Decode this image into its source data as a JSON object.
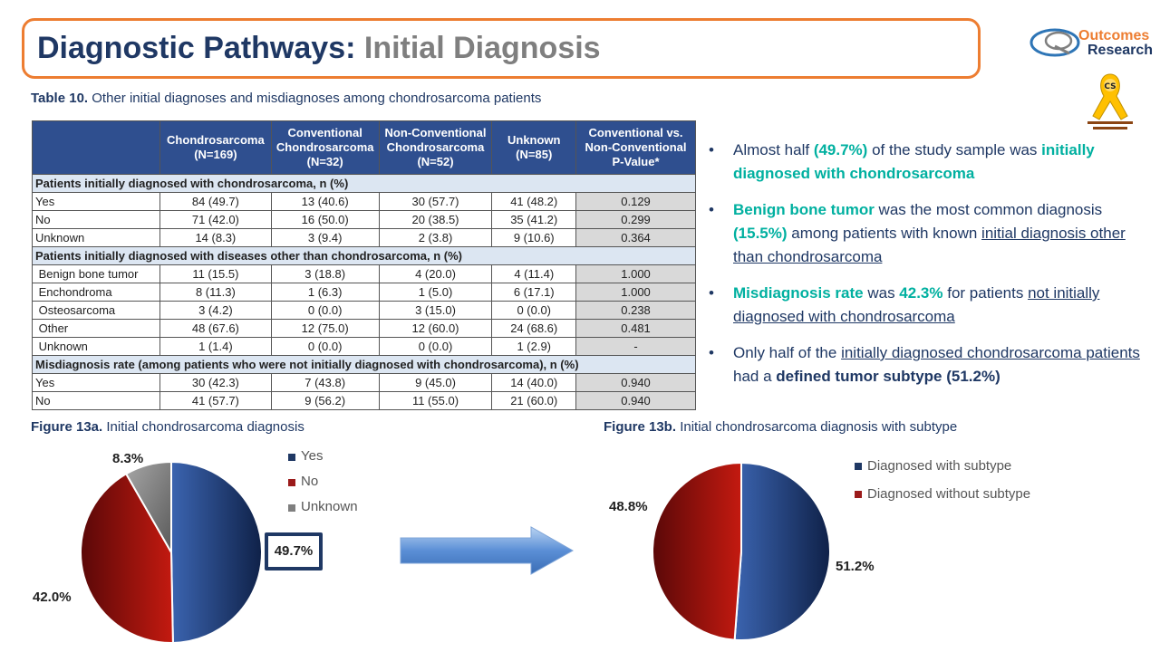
{
  "title": {
    "main": "Diagnostic Pathways:",
    "sub": "Initial Diagnosis"
  },
  "logo": {
    "line1": "Outcomes",
    "line2": "Research"
  },
  "ribbon": {
    "label": "CHONDROSARCOMA FOUNDATION"
  },
  "table": {
    "caption_bold": "Table 10.",
    "caption_text": " Other initial diagnoses and misdiagnoses among chondrosarcoma patients",
    "headers": [
      "",
      "Chondrosarcoma (N=169)",
      "Conventional Chondrosarcoma (N=32)",
      "Non-Conventional Chondrosarcoma (N=52)",
      "Unknown (N=85)",
      "Conventional vs. Non-Conventional P-Value*"
    ],
    "sections": [
      {
        "title": "Patients initially diagnosed with chondrosarcoma, n (%)",
        "rows": [
          [
            "Yes",
            "84 (49.7)",
            "13 (40.6)",
            "30 (57.7)",
            "41 (48.2)",
            "0.129"
          ],
          [
            "No",
            "71 (42.0)",
            "16 (50.0)",
            "20 (38.5)",
            "35 (41.2)",
            "0.299"
          ],
          [
            "Unknown",
            "14 (8.3)",
            "3 (9.4)",
            "2 (3.8)",
            "9 (10.6)",
            "0.364"
          ]
        ]
      },
      {
        "title": "Patients initially diagnosed with diseases other than chondrosarcoma, n (%)",
        "rows": [
          [
            " Benign bone tumor",
            "11 (15.5)",
            "3 (18.8)",
            "4 (20.0)",
            "4 (11.4)",
            "1.000"
          ],
          [
            " Enchondroma",
            "8 (11.3)",
            "1 (6.3)",
            "1 (5.0)",
            "6 (17.1)",
            "1.000"
          ],
          [
            " Osteosarcoma",
            "3 (4.2)",
            "0 (0.0)",
            "3 (15.0)",
            "0 (0.0)",
            "0.238"
          ],
          [
            " Other",
            "48 (67.6)",
            "12 (75.0)",
            "12 (60.0)",
            "24 (68.6)",
            "0.481"
          ],
          [
            " Unknown",
            "1 (1.4)",
            "0 (0.0)",
            "0 (0.0)",
            "1 (2.9)",
            "-"
          ]
        ]
      },
      {
        "title": "Misdiagnosis rate (among patients who were not initially diagnosed with chondrosarcoma), n (%)",
        "rows": [
          [
            "Yes",
            "30 (42.3)",
            "7 (43.8)",
            "9 (45.0)",
            "14 (40.0)",
            "0.940"
          ],
          [
            "No",
            "41 (57.7)",
            "9 (56.2)",
            "11 (55.0)",
            "21 (60.0)",
            "0.940"
          ]
        ]
      }
    ]
  },
  "bullets": {
    "b1": {
      "t1": "Almost half ",
      "t2": "(49.7%)",
      "t3": " of the study sample was ",
      "t4": "initially diagnosed with chondrosarcoma"
    },
    "b2": {
      "t1": "Benign bone tumor",
      "t2": " was the most common diagnosis ",
      "t3": "(15.5%)",
      "t4": " among patients with known ",
      "t5": "initial diagnosis other than chondrosarcoma"
    },
    "b3": {
      "t1": "Misdiagnosis  rate",
      "t2": " was ",
      "t3": "42.3%",
      "t4": " for patients ",
      "t5": "not initially diagnosed with chondrosarcoma"
    },
    "b4": {
      "t1": "Only half of the ",
      "t2": "initially diagnosed chondrosarcoma patients",
      "t3": " had a ",
      "t4": "defined tumor subtype (51.2%)"
    }
  },
  "figures": {
    "fig_a_caption_bold": "Figure 13a.",
    "fig_a_caption_text": " Initial chondrosarcoma diagnosis",
    "fig_b_caption_bold": "Figure 13b.",
    "fig_b_caption_text": " Initial chondrosarcoma diagnosis with subtype"
  },
  "chart_data": [
    {
      "type": "pie",
      "title": "",
      "categories": [
        "Yes",
        "No",
        "Unknown"
      ],
      "values": [
        49.7,
        42.0,
        8.3
      ],
      "labels": [
        "49.7%",
        "42.0%",
        "8.3%"
      ],
      "colors": [
        "#1F3864",
        "#9B1B1B",
        "#7F7F7F"
      ],
      "legend": "right"
    },
    {
      "type": "pie",
      "title": "",
      "categories": [
        "Diagnosed with subtype",
        "Diagnosed without subtype"
      ],
      "values": [
        51.2,
        48.8
      ],
      "labels": [
        "51.2%",
        "48.8%"
      ],
      "colors": [
        "#1F3864",
        "#9B1B1B"
      ],
      "legend": "top-right"
    }
  ]
}
